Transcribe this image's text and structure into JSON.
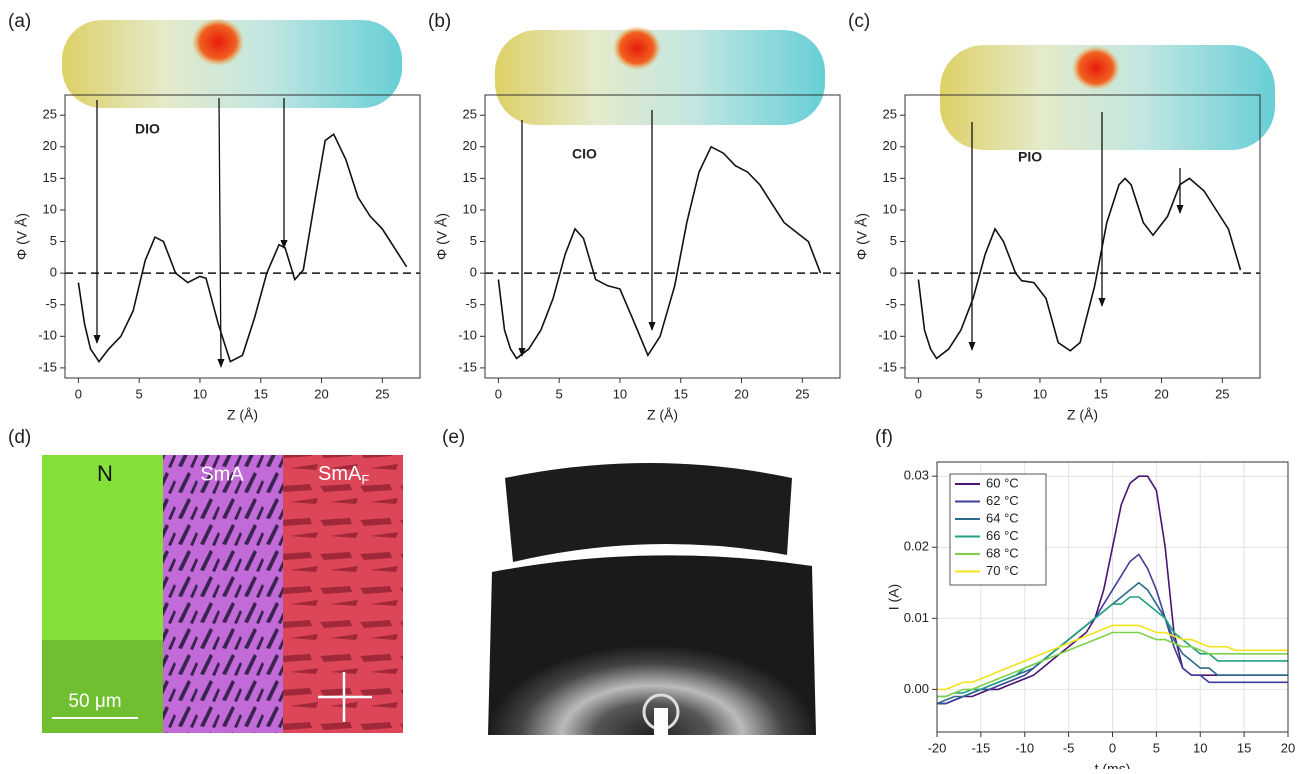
{
  "chart_data": [
    {
      "type": "line",
      "panel_label": "(a)",
      "molecule_label": "DIO",
      "xlabel": "Z (Å)",
      "ylabel": "Φ (V Å)",
      "x": [
        0,
        0.5,
        1,
        1.7,
        2.5,
        3.5,
        4.5,
        5.5,
        6.3,
        7,
        8,
        9,
        10,
        10.5,
        11.5,
        12.5,
        13.5,
        14.5,
        15.5,
        16.5,
        17,
        17.8,
        18.5,
        19.5,
        20.3,
        21,
        22,
        23,
        24,
        25,
        26,
        27
      ],
      "series": [
        {
          "color": "#111111",
          "values": [
            -1.5,
            -8,
            -12,
            -14,
            -12,
            -10,
            -6,
            2,
            5.7,
            5,
            0,
            -1.5,
            -0.5,
            -0.8,
            -8,
            -14,
            -13,
            -7,
            0,
            4.5,
            4,
            -1,
            0.5,
            12,
            21,
            22,
            18,
            12,
            9,
            7,
            4,
            1
          ]
        }
      ],
      "xlim": [
        -1.1,
        28.1
      ],
      "ylim": [
        -16.6,
        28.2
      ],
      "xticks": [
        0,
        5,
        10,
        15,
        20,
        25
      ],
      "yticks": [
        -15,
        -10,
        -5,
        0,
        5,
        10,
        15,
        20,
        25
      ],
      "reference_line": 0
    },
    {
      "type": "line",
      "panel_label": "(b)",
      "molecule_label": "CIO",
      "xlabel": "Z (Å)",
      "ylabel": "Φ (V Å)",
      "x": [
        0,
        0.5,
        1,
        1.5,
        2.5,
        3.5,
        4.5,
        5.5,
        6.3,
        7,
        8,
        9,
        10,
        11,
        12.3,
        13.3,
        14.5,
        15.5,
        16.5,
        17.5,
        18.5,
        19.5,
        20.5,
        21.5,
        22.5,
        23.5,
        24.5,
        25.5,
        26.5
      ],
      "series": [
        {
          "color": "#111111",
          "values": [
            -1,
            -9,
            -12,
            -13.5,
            -12,
            -9,
            -4,
            3,
            7,
            5.5,
            -1,
            -2,
            -2.5,
            -7,
            -13,
            -10,
            -2,
            8,
            16,
            20,
            19,
            17,
            16,
            14,
            11,
            8,
            6.5,
            5,
            0
          ]
        }
      ],
      "xlim": [
        -1.1,
        28.1
      ],
      "ylim": [
        -16.6,
        28.2
      ],
      "xticks": [
        0,
        5,
        10,
        15,
        20,
        25
      ],
      "yticks": [
        -15,
        -10,
        -5,
        0,
        5,
        10,
        15,
        20,
        25
      ],
      "reference_line": 0
    },
    {
      "type": "line",
      "panel_label": "(c)",
      "molecule_label": "PIO",
      "xlabel": "Z (Å)",
      "ylabel": "Φ (V Å)",
      "x": [
        0,
        0.5,
        1,
        1.5,
        2.5,
        3.5,
        4.5,
        5.5,
        6.3,
        7,
        8,
        8.5,
        9.5,
        10.5,
        11.5,
        12.5,
        13.3,
        14.5,
        15.5,
        16.5,
        17,
        17.5,
        18.5,
        19.3,
        20.5,
        21.5,
        22.3,
        23.5,
        24.5,
        25.5,
        26.5
      ],
      "series": [
        {
          "color": "#111111",
          "values": [
            -1,
            -9,
            -12,
            -13.5,
            -12,
            -9,
            -4,
            3,
            7,
            5,
            0,
            -1.2,
            -1.5,
            -4,
            -11,
            -12.3,
            -11,
            -2,
            8,
            14,
            15,
            14,
            8,
            6,
            9,
            14,
            15,
            13,
            10,
            7,
            0.5
          ]
        }
      ],
      "xlim": [
        -1.1,
        28.1
      ],
      "ylim": [
        -16.6,
        28.2
      ],
      "xticks": [
        0,
        5,
        10,
        15,
        20,
        25
      ],
      "yticks": [
        -15,
        -10,
        -5,
        0,
        5,
        10,
        15,
        20,
        25
      ],
      "reference_line": 0
    },
    {
      "type": "line",
      "panel_label": "(f)",
      "xlabel": "t (ms)",
      "ylabel": "I (A)",
      "grid": true,
      "legend": "upper left",
      "x": [
        -20,
        -19,
        -18,
        -17,
        -16,
        -15,
        -14,
        -13,
        -12,
        -11,
        -10,
        -9,
        -8,
        -7,
        -6,
        -5,
        -4,
        -3,
        -2,
        -1,
        0,
        1,
        2,
        3,
        4,
        5,
        6,
        7,
        8,
        9,
        10,
        11,
        12,
        13,
        14,
        15,
        16,
        17,
        18,
        19,
        20
      ],
      "series": [
        {
          "name": "60 °C",
          "color": "#4b1470",
          "values": [
            -0.002,
            -0.002,
            -0.0015,
            -0.001,
            -0.001,
            -0.0005,
            0,
            0,
            0.0005,
            0.001,
            0.0015,
            0.002,
            0.003,
            0.004,
            0.005,
            0.006,
            0.007,
            0.008,
            0.01,
            0.014,
            0.02,
            0.026,
            0.029,
            0.03,
            0.03,
            0.028,
            0.02,
            0.008,
            0.003,
            0.002,
            0.002,
            0.002,
            0.002,
            0.002,
            0.002,
            0.002,
            0.002,
            0.002,
            0.002,
            0.002,
            0.002
          ]
        },
        {
          "name": "62 °C",
          "color": "#3f3f9c",
          "values": [
            -0.002,
            -0.002,
            -0.0015,
            -0.001,
            -0.0005,
            0,
            0,
            0.0005,
            0.001,
            0.0015,
            0.002,
            0.003,
            0.004,
            0.005,
            0.006,
            0.007,
            0.008,
            0.009,
            0.01,
            0.012,
            0.014,
            0.016,
            0.018,
            0.019,
            0.017,
            0.014,
            0.01,
            0.006,
            0.003,
            0.002,
            0.002,
            0.001,
            0.001,
            0.001,
            0.001,
            0.001,
            0.001,
            0.001,
            0.001,
            0.001,
            0.001
          ]
        },
        {
          "name": "64 °C",
          "color": "#2b6b8c",
          "values": [
            -0.002,
            -0.0015,
            -0.001,
            -0.001,
            -0.0005,
            0,
            0.0005,
            0.001,
            0.0015,
            0.002,
            0.0025,
            0.003,
            0.004,
            0.005,
            0.006,
            0.007,
            0.008,
            0.009,
            0.01,
            0.011,
            0.012,
            0.013,
            0.014,
            0.015,
            0.014,
            0.012,
            0.01,
            0.007,
            0.005,
            0.004,
            0.003,
            0.003,
            0.002,
            0.002,
            0.002,
            0.002,
            0.002,
            0.002,
            0.002,
            0.002,
            0.002
          ]
        },
        {
          "name": "66 °C",
          "color": "#22a085",
          "values": [
            -0.001,
            -0.001,
            -0.0005,
            -0.0005,
            0,
            0,
            0.0005,
            0.001,
            0.0015,
            0.002,
            0.003,
            0.0035,
            0.004,
            0.005,
            0.006,
            0.007,
            0.008,
            0.009,
            0.01,
            0.011,
            0.012,
            0.012,
            0.013,
            0.013,
            0.012,
            0.011,
            0.01,
            0.008,
            0.007,
            0.006,
            0.005,
            0.005,
            0.004,
            0.004,
            0.004,
            0.004,
            0.004,
            0.004,
            0.004,
            0.004,
            0.004
          ]
        },
        {
          "name": "68 °C",
          "color": "#7fd14a",
          "values": [
            -0.001,
            -0.001,
            -0.0005,
            0,
            0,
            0.0005,
            0.001,
            0.0015,
            0.002,
            0.0025,
            0.003,
            0.0035,
            0.004,
            0.0045,
            0.005,
            0.0055,
            0.006,
            0.0065,
            0.007,
            0.0075,
            0.008,
            0.008,
            0.008,
            0.008,
            0.0075,
            0.007,
            0.007,
            0.0065,
            0.006,
            0.006,
            0.0055,
            0.005,
            0.005,
            0.005,
            0.005,
            0.005,
            0.005,
            0.005,
            0.005,
            0.005,
            0.005
          ]
        },
        {
          "name": "70 °C",
          "color": "#f2e41c",
          "values": [
            0,
            0,
            0.0005,
            0.001,
            0.001,
            0.0015,
            0.002,
            0.0025,
            0.003,
            0.0035,
            0.004,
            0.0045,
            0.005,
            0.0055,
            0.006,
            0.0065,
            0.007,
            0.0075,
            0.008,
            0.0085,
            0.009,
            0.009,
            0.009,
            0.009,
            0.0085,
            0.008,
            0.008,
            0.0075,
            0.007,
            0.007,
            0.0065,
            0.006,
            0.006,
            0.006,
            0.0055,
            0.0055,
            0.0055,
            0.0055,
            0.0055,
            0.0055,
            0.0055
          ]
        }
      ],
      "xlim": [
        -20,
        20
      ],
      "ylim": [
        -0.006,
        0.032
      ],
      "xticks": [
        -20,
        -15,
        -10,
        -5,
        0,
        5,
        10,
        15,
        20
      ],
      "yticks": [
        {
          "value": 0,
          "label": "0.00"
        },
        {
          "value": 0.01,
          "label": "0.01"
        },
        {
          "value": 0.02,
          "label": "0.02"
        },
        {
          "value": 0.03,
          "label": "0.03"
        }
      ]
    }
  ],
  "images": [
    {
      "panel_label": "(d)",
      "regions": [
        "N",
        "SmA",
        {
          "text": "SmA",
          "subscript": "F"
        }
      ],
      "scale_bar": "50 μm"
    },
    {
      "panel_label": "(e)"
    }
  ]
}
